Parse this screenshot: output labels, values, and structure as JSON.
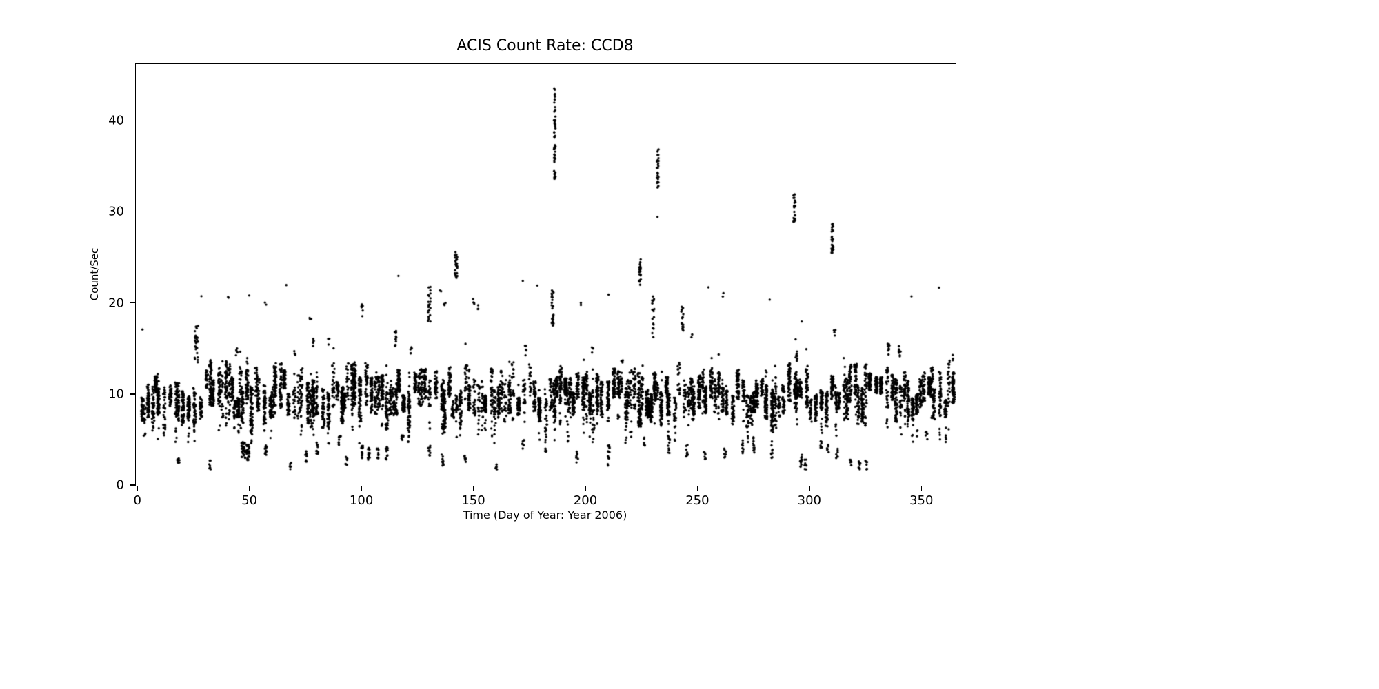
{
  "chart_data": {
    "type": "scatter",
    "title": "ACIS Count Rate: CCD8",
    "xlabel": "Time (Day of Year: Year 2006)",
    "ylabel": "Count/Sec",
    "xlim": [
      -1,
      365
    ],
    "ylim": [
      0,
      46.3
    ],
    "xticks": [
      0,
      50,
      100,
      150,
      200,
      250,
      300,
      350
    ],
    "yticks": [
      0,
      10,
      20,
      30,
      40
    ],
    "grid": false,
    "legend": false,
    "style": {
      "dot_color": "#000000",
      "dot_radius": 1.7,
      "background": "#ffffff",
      "seed": 20061
    },
    "description": "Dense vertical streaks of ACIS CCD8 count-rate samples; main band between ~6 and ~14 counts/sec across days 2-365, sparse low clusters near 2-5, and high flare spikes (max ~44 near day 186).",
    "baseline": {
      "day_start": 2,
      "day_end": 365,
      "center_min": 8.2,
      "center_max": 11.8,
      "spread_min": 0.9,
      "spread_max": 2.6,
      "points_min": 18,
      "points_max": 75,
      "gap_min": 0.8,
      "gap_max": 3.0,
      "tail_prob": 0.38,
      "tail_depth": 2.8,
      "high_prob": 0.15,
      "high_reach": 2.2
    },
    "features": [
      {
        "day": 2,
        "ymin": 16.8,
        "ymax": 17.2,
        "n": 1
      },
      {
        "day": 3,
        "ymin": 5.5,
        "ymax": 9.0,
        "n": 12
      },
      {
        "day": 18,
        "ymin": 2.0,
        "ymax": 3.2,
        "n": 10
      },
      {
        "day": 26,
        "ymin": 13.5,
        "ymax": 17.6,
        "n": 30,
        "xj": 0.8
      },
      {
        "day": 28,
        "ymin": 20.6,
        "ymax": 21.0,
        "n": 1
      },
      {
        "day": 32,
        "ymin": 1.8,
        "ymax": 2.8,
        "n": 8
      },
      {
        "day": 40,
        "ymin": 20.3,
        "ymax": 20.8,
        "n": 2
      },
      {
        "day": 44,
        "ymin": 14.3,
        "ymax": 15.3,
        "n": 5
      },
      {
        "day": 47,
        "ymin": 3.0,
        "ymax": 4.8,
        "n": 35,
        "xj": 0.9
      },
      {
        "day": 49,
        "ymin": 2.8,
        "ymax": 4.5,
        "n": 25,
        "xj": 0.7
      },
      {
        "day": 50,
        "ymin": 20.8,
        "ymax": 21.2,
        "n": 1
      },
      {
        "day": 57,
        "ymin": 3.2,
        "ymax": 4.8,
        "n": 14
      },
      {
        "day": 57,
        "ymin": 19.8,
        "ymax": 20.3,
        "n": 2
      },
      {
        "day": 66,
        "ymin": 21.8,
        "ymax": 22.2,
        "n": 1
      },
      {
        "day": 68,
        "ymin": 1.7,
        "ymax": 2.6,
        "n": 6
      },
      {
        "day": 70,
        "ymin": 14.3,
        "ymax": 15.2,
        "n": 4
      },
      {
        "day": 75,
        "ymin": 2.5,
        "ymax": 4.0,
        "n": 9
      },
      {
        "day": 77,
        "ymin": 17.7,
        "ymax": 18.5,
        "n": 3
      },
      {
        "day": 78,
        "ymin": 15.3,
        "ymax": 16.4,
        "n": 5
      },
      {
        "day": 80,
        "ymin": 3.5,
        "ymax": 5.0,
        "n": 9
      },
      {
        "day": 85,
        "ymin": 15.4,
        "ymax": 16.2,
        "n": 4
      },
      {
        "day": 90,
        "ymin": 4.2,
        "ymax": 5.5,
        "n": 10
      },
      {
        "day": 93,
        "ymin": 2.2,
        "ymax": 3.2,
        "n": 8
      },
      {
        "day": 100,
        "ymin": 18.4,
        "ymax": 20.0,
        "n": 8
      },
      {
        "day": 100,
        "ymin": 3.0,
        "ymax": 4.5,
        "n": 16
      },
      {
        "day": 103,
        "ymin": 2.8,
        "ymax": 4.2,
        "n": 14
      },
      {
        "day": 107,
        "ymin": 3.0,
        "ymax": 4.1,
        "n": 10
      },
      {
        "day": 111,
        "ymin": 2.8,
        "ymax": 4.3,
        "n": 12
      },
      {
        "day": 115,
        "ymin": 15.3,
        "ymax": 17.0,
        "n": 14
      },
      {
        "day": 116,
        "ymin": 22.9,
        "ymax": 23.1,
        "n": 1
      },
      {
        "day": 118,
        "ymin": 4.5,
        "ymax": 5.6,
        "n": 7
      },
      {
        "day": 122,
        "ymin": 14.3,
        "ymax": 15.4,
        "n": 5
      },
      {
        "day": 130,
        "ymin": 18.0,
        "ymax": 22.0,
        "n": 22,
        "xj": 0.6
      },
      {
        "day": 130,
        "ymin": 3.0,
        "ymax": 4.5,
        "n": 9
      },
      {
        "day": 135,
        "ymin": 21.2,
        "ymax": 21.8,
        "n": 2
      },
      {
        "day": 136,
        "ymin": 2.2,
        "ymax": 3.5,
        "n": 9
      },
      {
        "day": 137,
        "ymin": 19.4,
        "ymax": 20.2,
        "n": 3
      },
      {
        "day": 142,
        "ymin": 22.8,
        "ymax": 26.0,
        "n": 30,
        "xj": 0.6
      },
      {
        "day": 146,
        "ymin": 2.5,
        "ymax": 3.5,
        "n": 7
      },
      {
        "day": 150,
        "ymin": 19.7,
        "ymax": 20.6,
        "n": 4
      },
      {
        "day": 152,
        "ymin": 19.4,
        "ymax": 20.1,
        "n": 3
      },
      {
        "day": 160,
        "ymin": 1.8,
        "ymax": 2.6,
        "n": 6
      },
      {
        "day": 172,
        "ymin": 22.3,
        "ymax": 22.7,
        "n": 1
      },
      {
        "day": 172,
        "ymin": 4.0,
        "ymax": 5.0,
        "n": 7
      },
      {
        "day": 173,
        "ymin": 14.3,
        "ymax": 15.4,
        "n": 6
      },
      {
        "day": 178,
        "ymin": 21.8,
        "ymax": 22.2,
        "n": 1
      },
      {
        "day": 182,
        "ymin": 3.2,
        "ymax": 4.2,
        "n": 5
      },
      {
        "day": 185,
        "ymin": 17.0,
        "ymax": 21.5,
        "n": 26,
        "xj": 0.5
      },
      {
        "day": 186,
        "ymin": 33.2,
        "ymax": 37.4,
        "n": 26,
        "xj": 0.35
      },
      {
        "day": 186,
        "ymin": 38.2,
        "ymax": 43.8,
        "n": 30,
        "xj": 0.35
      },
      {
        "day": 196,
        "ymin": 2.5,
        "ymax": 3.8,
        "n": 8
      },
      {
        "day": 198,
        "ymin": 19.8,
        "ymax": 20.3,
        "n": 2
      },
      {
        "day": 203,
        "ymin": 14.6,
        "ymax": 15.4,
        "n": 4
      },
      {
        "day": 210,
        "ymin": 2.0,
        "ymax": 5.0,
        "n": 14,
        "xj": 0.5
      },
      {
        "day": 210,
        "ymin": 20.8,
        "ymax": 21.2,
        "n": 1
      },
      {
        "day": 216,
        "ymin": 13.4,
        "ymax": 14.4,
        "n": 5
      },
      {
        "day": 224,
        "ymin": 22.0,
        "ymax": 25.0,
        "n": 24,
        "xj": 0.5
      },
      {
        "day": 224,
        "ymin": 6.5,
        "ymax": 8.5,
        "n": 40,
        "xj": 0.8
      },
      {
        "day": 226,
        "ymin": 4.3,
        "ymax": 5.3,
        "n": 6
      },
      {
        "day": 230,
        "ymin": 16.0,
        "ymax": 21.0,
        "n": 18,
        "xj": 0.5
      },
      {
        "day": 232,
        "ymin": 29.4,
        "ymax": 29.8,
        "n": 1
      },
      {
        "day": 232,
        "ymin": 32.5,
        "ymax": 37.0,
        "n": 30,
        "xj": 0.4
      },
      {
        "day": 237,
        "ymin": 3.5,
        "ymax": 5.5,
        "n": 10
      },
      {
        "day": 243,
        "ymin": 17.0,
        "ymax": 20.0,
        "n": 18,
        "xj": 0.5
      },
      {
        "day": 245,
        "ymin": 3.2,
        "ymax": 4.5,
        "n": 9
      },
      {
        "day": 247,
        "ymin": 16.2,
        "ymax": 16.8,
        "n": 2
      },
      {
        "day": 253,
        "ymin": 2.8,
        "ymax": 4.0,
        "n": 8
      },
      {
        "day": 255,
        "ymin": 21.3,
        "ymax": 21.8,
        "n": 1
      },
      {
        "day": 261,
        "ymin": 20.7,
        "ymax": 21.3,
        "n": 2
      },
      {
        "day": 262,
        "ymin": 3.0,
        "ymax": 4.2,
        "n": 9
      },
      {
        "day": 270,
        "ymin": 3.5,
        "ymax": 5.0,
        "n": 10
      },
      {
        "day": 275,
        "ymin": 3.5,
        "ymax": 5.5,
        "n": 12
      },
      {
        "day": 282,
        "ymin": 20.3,
        "ymax": 20.7,
        "n": 1
      },
      {
        "day": 283,
        "ymin": 3.0,
        "ymax": 4.5,
        "n": 8
      },
      {
        "day": 293,
        "ymin": 28.9,
        "ymax": 32.1,
        "n": 26,
        "xj": 0.45
      },
      {
        "day": 294,
        "ymin": 13.4,
        "ymax": 16.6,
        "n": 10,
        "xj": 0.45
      },
      {
        "day": 296,
        "ymin": 17.7,
        "ymax": 18.2,
        "n": 1
      },
      {
        "day": 296,
        "ymin": 2.0,
        "ymax": 3.5,
        "n": 14
      },
      {
        "day": 298,
        "ymin": 1.8,
        "ymax": 3.0,
        "n": 9
      },
      {
        "day": 305,
        "ymin": 3.8,
        "ymax": 5.0,
        "n": 7
      },
      {
        "day": 308,
        "ymin": 3.5,
        "ymax": 4.5,
        "n": 6
      },
      {
        "day": 310,
        "ymin": 25.5,
        "ymax": 29.0,
        "n": 28,
        "xj": 0.45
      },
      {
        "day": 311,
        "ymin": 16.4,
        "ymax": 17.5,
        "n": 4
      },
      {
        "day": 312,
        "ymin": 3.0,
        "ymax": 4.2,
        "n": 7
      },
      {
        "day": 318,
        "ymin": 2.2,
        "ymax": 3.2,
        "n": 6
      },
      {
        "day": 322,
        "ymin": 1.8,
        "ymax": 2.8,
        "n": 8
      },
      {
        "day": 325,
        "ymin": 1.8,
        "ymax": 2.8,
        "n": 8
      },
      {
        "day": 335,
        "ymin": 14.2,
        "ymax": 15.6,
        "n": 8
      },
      {
        "day": 340,
        "ymin": 14.2,
        "ymax": 15.4,
        "n": 9
      },
      {
        "day": 345,
        "ymin": 20.5,
        "ymax": 21.0,
        "n": 1
      },
      {
        "day": 352,
        "ymin": 5.0,
        "ymax": 6.0,
        "n": 6
      },
      {
        "day": 358,
        "ymin": 21.5,
        "ymax": 21.9,
        "n": 1
      },
      {
        "day": 362,
        "ymin": 12.8,
        "ymax": 13.8,
        "n": 6
      }
    ]
  }
}
